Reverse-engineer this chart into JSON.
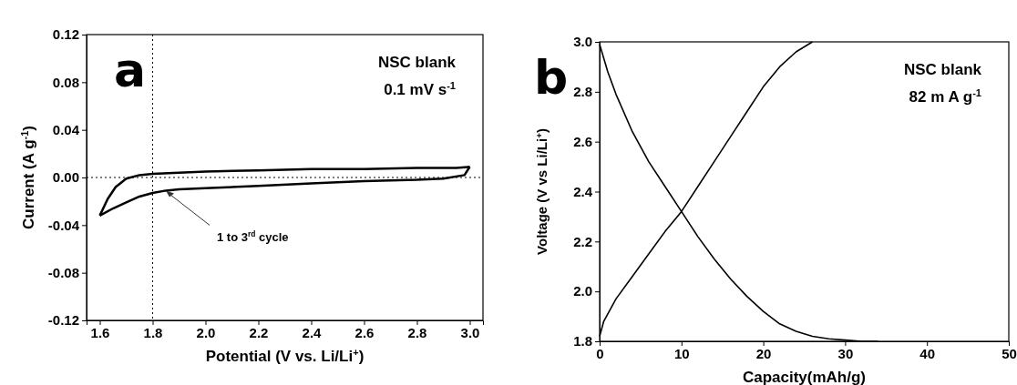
{
  "chart_data": [
    {
      "type": "line",
      "xlabel": "Potential (V vs. Li/Li$^{+}$)",
      "ylabel": "Current (A g$^{-1}$)",
      "xlim": [
        1.55,
        3.05
      ],
      "xticks": [
        1.6,
        1.8,
        {
          "value": 2,
          "label": "2.0"
        },
        2.2,
        2.4,
        2.6,
        2.8,
        {
          "value": 3,
          "label": "3.0"
        }
      ],
      "ylim": [
        -0.12,
        0.12
      ],
      "yticks": [
        -0.12,
        -0.08,
        -0.04,
        {
          "value": 0,
          "label": "0.00"
        },
        0.04,
        0.08,
        0.12
      ],
      "series": [
        {
          "color": "#000000",
          "x": [
            1.6,
            1.63,
            1.66,
            1.7,
            1.75,
            1.8,
            1.9,
            2.0,
            2.2,
            2.4,
            2.6,
            2.8,
            2.95,
            3.0
          ],
          "values": [
            -0.032,
            -0.018,
            -0.008,
            -0.001,
            0.002,
            0.003,
            0.004,
            0.005,
            0.006,
            0.007,
            0.007,
            0.008,
            0.008,
            0.009
          ]
        },
        {
          "color": "#000000",
          "x": [
            1.6,
            1.65,
            1.7,
            1.75,
            1.8,
            1.85,
            1.9,
            2.0,
            2.2,
            2.4,
            2.6,
            2.8,
            2.9,
            2.98,
            3.0
          ],
          "values": [
            -0.032,
            -0.026,
            -0.021,
            -0.016,
            -0.013,
            -0.011,
            -0.01,
            -0.009,
            -0.007,
            -0.005,
            -0.003,
            -0.002,
            -0.001,
            0.002,
            0.009
          ]
        }
      ],
      "ref_lines": [
        {
          "axis": "x",
          "value": 1.8,
          "line_style": "dotted"
        },
        {
          "axis": "y",
          "value": 0,
          "line_style": "dotted"
        }
      ],
      "annotations": [
        "a",
        "NSC blank",
        "0.1 mV s$^{-1}$",
        {
          "text": "1 to 3$^{rd}$ cycle",
          "x": 1.85,
          "y": -0.011
        }
      ]
    },
    {
      "type": "line",
      "xlabel": "Capacity(mAh/g)",
      "ylabel": "Voltage (V vs Li/Li$^{+}$)",
      "xlim": [
        0,
        50
      ],
      "xticks": [
        0,
        10,
        20,
        30,
        40,
        50
      ],
      "ylim": [
        1.8,
        3.0
      ],
      "yticks": [
        1.8,
        {
          "value": 2,
          "label": "2.0"
        },
        2.2,
        2.4,
        2.6,
        2.8,
        {
          "value": 3,
          "label": "3.0"
        }
      ],
      "series": [
        {
          "color": "#000000",
          "x": [
            0,
            1,
            2,
            4,
            6,
            8,
            10,
            12,
            14,
            16,
            18,
            20,
            22,
            24,
            26,
            28,
            30,
            32,
            34
          ],
          "values": [
            2.99,
            2.88,
            2.79,
            2.64,
            2.52,
            2.42,
            2.32,
            2.22,
            2.13,
            2.05,
            1.98,
            1.92,
            1.87,
            1.84,
            1.82,
            1.81,
            1.805,
            1.8,
            1.8
          ]
        },
        {
          "color": "#000000",
          "x": [
            0,
            0.5,
            1,
            2,
            4,
            6,
            8,
            10,
            12,
            14,
            16,
            18,
            20,
            22,
            24,
            26
          ],
          "values": [
            1.82,
            1.88,
            1.91,
            1.97,
            2.06,
            2.15,
            2.24,
            2.32,
            2.42,
            2.52,
            2.62,
            2.72,
            2.82,
            2.9,
            2.96,
            3.0
          ]
        }
      ],
      "annotations": [
        "b",
        "NSC blank",
        "82 m A g$^{-1}$"
      ]
    }
  ]
}
